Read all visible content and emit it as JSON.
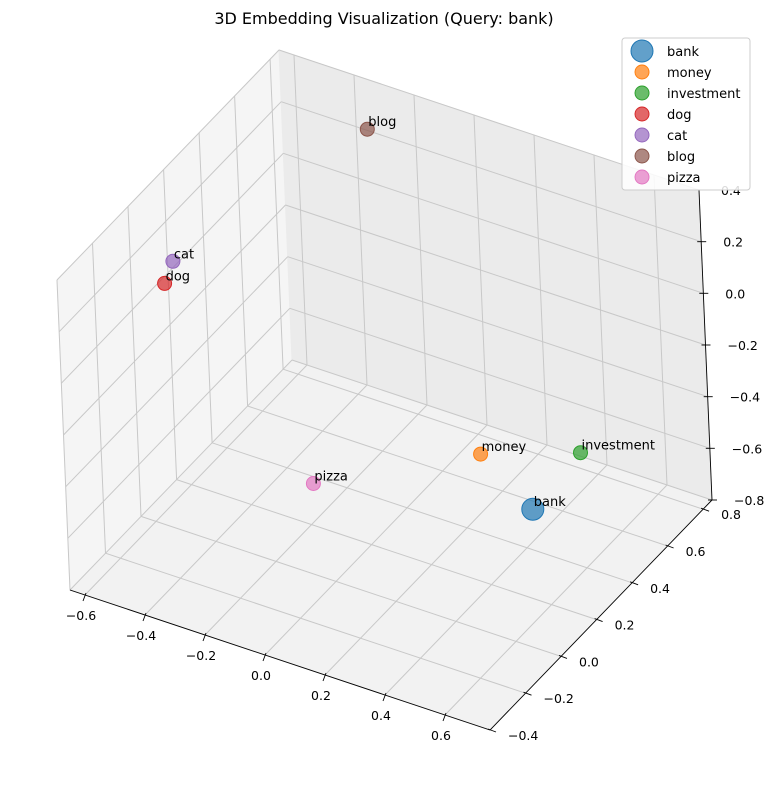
{
  "chart_data": {
    "type": "scatter",
    "title": "3D Embedding Visualization (Query: bank)",
    "grid": true,
    "legend_position": "top-right",
    "x_ticks": [
      "−0.6",
      "−0.4",
      "−0.2",
      "0.0",
      "0.2",
      "0.4",
      "0.6"
    ],
    "y_ticks": [
      "−0.4",
      "−0.2",
      "0.0",
      "0.2",
      "0.4",
      "0.6",
      "0.8"
    ],
    "z_ticks": [
      "−0.8",
      "−0.6",
      "−0.4",
      "−0.2",
      "0.0",
      "0.2",
      "0.4"
    ],
    "xlim": [
      -0.65,
      0.75
    ],
    "ylim": [
      -0.4,
      0.85
    ],
    "zlim": [
      -0.8,
      0.4
    ],
    "series": [
      {
        "name": "bank",
        "label": "bank",
        "color": "#1f77b4",
        "x": 0.55,
        "y": 0.2,
        "z": -0.45,
        "marker": "large"
      },
      {
        "name": "money",
        "label": "money",
        "color": "#ff7f0e",
        "x": 0.35,
        "y": 0.25,
        "z": -0.35,
        "marker": "normal"
      },
      {
        "name": "investment",
        "label": "investment",
        "color": "#2ca02c",
        "x": 0.5,
        "y": 0.55,
        "z": -0.5,
        "marker": "normal"
      },
      {
        "name": "dog",
        "label": "dog",
        "color": "#d62728",
        "x": -0.6,
        "y": 0.1,
        "z": 0.05,
        "marker": "normal"
      },
      {
        "name": "cat",
        "label": "cat",
        "color": "#9467bd",
        "x": -0.6,
        "y": 0.15,
        "z": 0.1,
        "marker": "normal"
      },
      {
        "name": "blog",
        "label": "blog",
        "color": "#8c564b",
        "x": -0.3,
        "y": 0.75,
        "z": 0.3,
        "marker": "normal"
      },
      {
        "name": "pizza",
        "label": "pizza",
        "color": "#e377c2",
        "x": 0.0,
        "y": -0.1,
        "z": -0.35,
        "marker": "normal"
      }
    ]
  }
}
